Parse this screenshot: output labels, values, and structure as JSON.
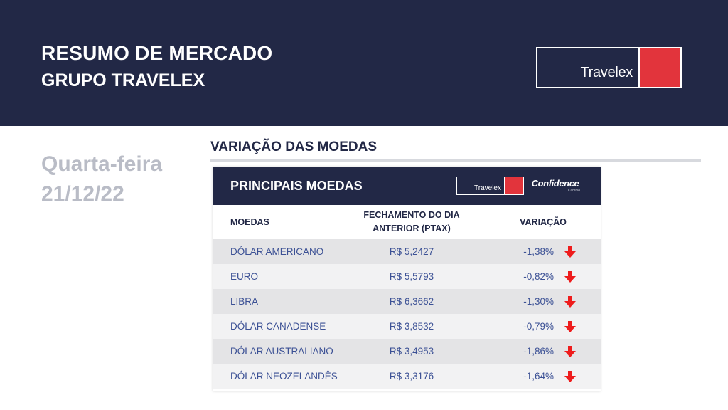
{
  "header": {
    "title": "RESUMO DE MERCADO",
    "subtitle": "GRUPO TRAVELEX",
    "logo_text": "Travelex"
  },
  "date_block": {
    "weekday": "Quarta-feira",
    "date": "21/12/22"
  },
  "section": {
    "title": "VARIAÇÃO DAS MOEDAS"
  },
  "card": {
    "title": "PRINCIPAIS MOEDAS",
    "logo_text": "Travelex",
    "partner_logo": "Confidence",
    "partner_sub": "Câmbio",
    "columns": {
      "moedas": "MOEDAS",
      "fechamento": "FECHAMENTO DO DIA ANTERIOR (PTAX)",
      "variacao": "VARIAÇÃO"
    },
    "rows": [
      {
        "name": "DÓLAR AMERICANO",
        "value": "R$ 5,2427",
        "variation": "-1,38%",
        "trend": "down-arrow-icon"
      },
      {
        "name": "EURO",
        "value": "R$ 5,5793",
        "variation": "-0,82%",
        "trend": "down-arrow-icon"
      },
      {
        "name": "LIBRA",
        "value": "R$ 6,3662",
        "variation": "-1,30%",
        "trend": "down-arrow-icon"
      },
      {
        "name": "DÓLAR CANADENSE",
        "value": "R$ 3,8532",
        "variation": "-0,79%",
        "trend": "down-arrow-icon"
      },
      {
        "name": "DÓLAR AUSTRALIANO",
        "value": "R$ 3,4953",
        "variation": "-1,86%",
        "trend": "down-arrow-icon"
      },
      {
        "name": "DÓLAR NEOZELANDÊS",
        "value": "R$ 3,3176",
        "variation": "-1,64%",
        "trend": "down-arrow-icon"
      }
    ]
  },
  "colors": {
    "navy": "#222846",
    "brand_red": "#e2343c",
    "arrow_red": "#ee1c1c",
    "row_text": "#3c5195",
    "date_gray": "#b9bcc6"
  }
}
